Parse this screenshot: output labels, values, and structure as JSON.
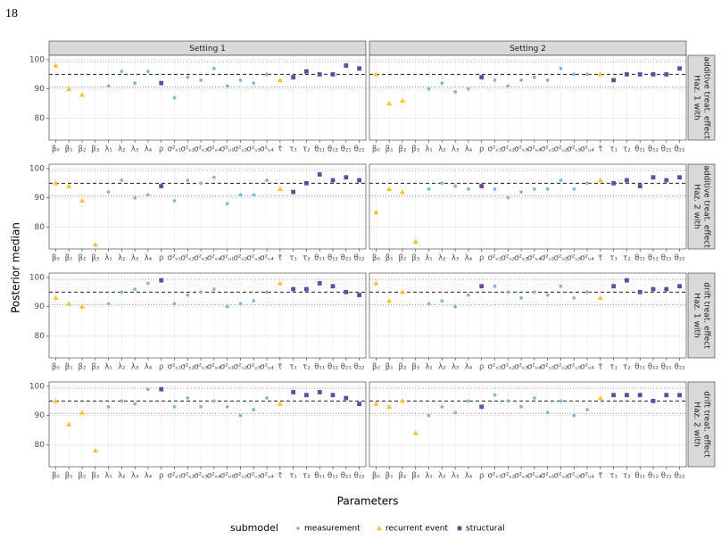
{
  "page_number": "18",
  "chart_data": {
    "type": "scatter",
    "x_label": "Parameters",
    "y_label": "Posterior median",
    "legend_title": "submodel",
    "columns": [
      "Setting 1",
      "Setting 2"
    ],
    "rows": [
      [
        "Haz. 1 with",
        "additive treat. effect"
      ],
      [
        "Haz. 2 with",
        "additive treat. effect"
      ],
      [
        "Haz. 1 with",
        "drift treat. effect"
      ],
      [
        "Haz. 2 with",
        "drift treat. effect"
      ]
    ],
    "categories": [
      "β₀",
      "β₁",
      "β₂",
      "β₃",
      "λ₁",
      "λ₂",
      "λ₃",
      "λ₄",
      "ρ",
      "σ²ₑ₁",
      "σ²ₑ₂",
      "σ²ₑ₃",
      "σ²ₑ₄",
      "σ²ᵤ₁",
      "σ²ᵤ₂",
      "σ²ᵤ₃",
      "σ²ᵤ₄",
      "τ̄",
      "τ₁",
      "τ₂",
      "θ₁₁",
      "θ₁₂",
      "θ₂₁",
      "θ₂₂"
    ],
    "series": [
      {
        "name": "measurement",
        "color": "#7db9d6",
        "shape": "circle"
      },
      {
        "name": "recurrent event",
        "color": "#f3c32c",
        "shape": "triangle"
      },
      {
        "name": "structural",
        "color": "#5d4d9e",
        "shape": "square"
      }
    ],
    "ylim": [
      72.5,
      101.5
    ],
    "yticks": [
      80,
      90,
      100
    ],
    "reference_line": 95,
    "interval": [
      90.7,
      99.3
    ],
    "grid": true,
    "legend_position": "bottom",
    "panels": [
      {
        "values": [
          [
            null,
            null,
            null,
            null,
            91,
            96,
            92,
            96,
            null,
            87,
            94,
            93,
            97,
            91,
            93,
            92,
            95,
            null,
            null,
            null,
            null,
            null,
            null,
            null
          ],
          [
            98,
            90,
            88,
            null,
            null,
            null,
            null,
            null,
            null,
            null,
            null,
            null,
            null,
            null,
            null,
            null,
            null,
            93,
            null,
            null,
            null,
            null,
            null,
            null
          ],
          [
            null,
            null,
            null,
            null,
            null,
            null,
            null,
            null,
            92,
            null,
            null,
            null,
            null,
            null,
            null,
            null,
            null,
            null,
            94,
            96,
            95,
            95,
            98,
            97
          ]
        ]
      },
      {
        "values": [
          [
            null,
            null,
            null,
            null,
            90,
            92,
            89,
            90,
            null,
            93,
            91,
            93,
            94,
            93,
            97,
            95,
            95,
            null,
            null,
            null,
            null,
            null,
            null,
            null
          ],
          [
            95,
            85,
            86,
            null,
            null,
            null,
            null,
            null,
            null,
            null,
            null,
            null,
            null,
            null,
            null,
            null,
            null,
            95,
            null,
            null,
            null,
            null,
            null,
            null
          ],
          [
            null,
            null,
            null,
            null,
            null,
            null,
            null,
            null,
            94,
            null,
            null,
            null,
            null,
            null,
            null,
            null,
            null,
            null,
            93,
            95,
            95,
            95,
            95,
            97
          ]
        ]
      },
      {
        "values": [
          [
            null,
            null,
            null,
            null,
            92,
            96,
            90,
            91,
            null,
            89,
            96,
            95,
            97,
            88,
            91,
            91,
            96,
            null,
            null,
            null,
            null,
            null,
            null,
            null
          ],
          [
            95,
            94,
            89,
            74,
            null,
            null,
            null,
            null,
            null,
            null,
            null,
            null,
            null,
            null,
            null,
            null,
            null,
            93,
            null,
            null,
            null,
            null,
            null,
            null
          ],
          [
            null,
            null,
            null,
            null,
            null,
            null,
            null,
            null,
            94,
            null,
            null,
            null,
            null,
            null,
            null,
            null,
            null,
            null,
            92,
            95,
            98,
            96,
            97,
            96
          ]
        ]
      },
      {
        "values": [
          [
            null,
            null,
            null,
            null,
            93,
            95,
            94,
            93,
            null,
            93,
            90,
            92,
            93,
            93,
            96,
            93,
            95,
            null,
            null,
            null,
            null,
            null,
            null,
            null
          ],
          [
            85,
            93,
            92,
            75,
            null,
            null,
            null,
            null,
            null,
            null,
            null,
            null,
            null,
            null,
            null,
            null,
            null,
            96,
            null,
            null,
            null,
            null,
            null,
            null
          ],
          [
            null,
            null,
            null,
            null,
            null,
            null,
            null,
            null,
            94,
            null,
            null,
            null,
            null,
            null,
            null,
            null,
            null,
            null,
            95,
            96,
            94,
            97,
            96,
            97
          ]
        ]
      },
      {
        "values": [
          [
            null,
            null,
            null,
            null,
            91,
            95,
            96,
            98,
            null,
            91,
            94,
            95,
            96,
            90,
            91,
            92,
            95,
            null,
            null,
            null,
            null,
            null,
            null,
            null
          ],
          [
            93,
            91,
            90,
            null,
            null,
            null,
            null,
            null,
            null,
            null,
            null,
            null,
            null,
            null,
            null,
            null,
            null,
            98,
            null,
            null,
            null,
            null,
            null,
            null
          ],
          [
            null,
            null,
            null,
            null,
            null,
            null,
            null,
            null,
            99,
            null,
            null,
            null,
            null,
            null,
            null,
            null,
            null,
            null,
            96,
            96,
            98,
            97,
            95,
            94
          ]
        ]
      },
      {
        "values": [
          [
            null,
            null,
            null,
            null,
            91,
            92,
            90,
            94,
            null,
            97,
            95,
            93,
            95,
            94,
            97,
            93,
            95,
            null,
            null,
            null,
            null,
            null,
            null,
            null
          ],
          [
            98,
            92,
            95,
            null,
            null,
            null,
            null,
            null,
            null,
            null,
            null,
            null,
            null,
            null,
            null,
            null,
            null,
            93,
            null,
            null,
            null,
            null,
            null,
            null
          ],
          [
            null,
            null,
            null,
            null,
            null,
            null,
            null,
            null,
            97,
            null,
            null,
            null,
            null,
            null,
            null,
            null,
            null,
            null,
            97,
            99,
            95,
            96,
            96,
            97
          ]
        ]
      },
      {
        "values": [
          [
            null,
            null,
            null,
            null,
            93,
            95,
            94,
            99,
            null,
            93,
            96,
            93,
            95,
            93,
            90,
            92,
            96,
            null,
            null,
            null,
            null,
            null,
            null,
            null
          ],
          [
            95,
            87,
            91,
            78,
            null,
            null,
            null,
            null,
            null,
            null,
            null,
            null,
            null,
            null,
            null,
            null,
            null,
            94,
            null,
            null,
            null,
            null,
            null,
            null
          ],
          [
            null,
            null,
            null,
            null,
            null,
            null,
            null,
            null,
            99,
            null,
            null,
            null,
            null,
            null,
            null,
            null,
            null,
            null,
            98,
            97,
            98,
            97,
            96,
            94
          ]
        ]
      },
      {
        "values": [
          [
            null,
            null,
            null,
            null,
            90,
            93,
            91,
            95,
            null,
            97,
            95,
            93,
            96,
            91,
            95,
            90,
            92,
            null,
            null,
            null,
            null,
            null,
            null,
            null
          ],
          [
            94,
            93,
            95,
            84,
            null,
            null,
            null,
            null,
            null,
            null,
            null,
            null,
            null,
            null,
            null,
            null,
            null,
            96,
            null,
            null,
            null,
            null,
            null,
            null
          ],
          [
            null,
            null,
            null,
            null,
            null,
            null,
            null,
            null,
            93,
            null,
            null,
            null,
            null,
            null,
            null,
            null,
            null,
            null,
            97,
            97,
            97,
            95,
            97,
            97
          ]
        ]
      }
    ]
  }
}
